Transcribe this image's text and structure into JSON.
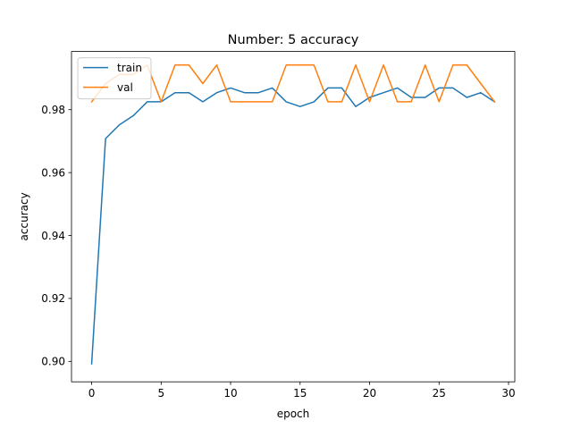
{
  "chart_data": {
    "type": "line",
    "title": "Number: 5 accuracy",
    "xlabel": "epoch",
    "ylabel": "accuracy",
    "xlim": [
      -1.45,
      30.45
    ],
    "ylim": [
      0.8935,
      0.9985
    ],
    "xticks": [
      0,
      5,
      10,
      15,
      20,
      25,
      30
    ],
    "yticks": [
      0.9,
      0.92,
      0.94,
      0.96,
      0.98
    ],
    "xtick_labels": [
      "0",
      "5",
      "10",
      "15",
      "20",
      "25",
      "30"
    ],
    "ytick_labels": [
      "0.90",
      "0.92",
      "0.94",
      "0.96",
      "0.98"
    ],
    "grid": false,
    "legend_position": "top-left",
    "x": [
      0,
      1,
      2,
      3,
      4,
      5,
      6,
      7,
      8,
      9,
      10,
      11,
      12,
      13,
      14,
      15,
      16,
      17,
      18,
      19,
      20,
      21,
      22,
      23,
      24,
      25,
      26,
      27,
      28,
      29
    ],
    "series": [
      {
        "name": "train",
        "color": "#1f77b4",
        "values": [
          0.8992,
          0.9708,
          0.9752,
          0.9781,
          0.9825,
          0.9825,
          0.9854,
          0.9854,
          0.9825,
          0.9854,
          0.9869,
          0.9854,
          0.9854,
          0.9869,
          0.9825,
          0.981,
          0.9825,
          0.9869,
          0.9869,
          0.981,
          0.9839,
          0.9854,
          0.9869,
          0.9839,
          0.9839,
          0.9869,
          0.9869,
          0.9839,
          0.9854,
          0.9825
        ]
      },
      {
        "name": "val",
        "color": "#ff7f0e",
        "values": [
          0.9825,
          0.9883,
          0.9912,
          0.9912,
          0.9942,
          0.9825,
          0.9942,
          0.9942,
          0.9883,
          0.9942,
          0.9825,
          0.9825,
          0.9825,
          0.9825,
          0.9942,
          0.9942,
          0.9942,
          0.9825,
          0.9825,
          0.9942,
          0.9825,
          0.9942,
          0.9825,
          0.9825,
          0.9942,
          0.9825,
          0.9942,
          0.9942,
          0.9883,
          0.9825
        ]
      }
    ]
  }
}
